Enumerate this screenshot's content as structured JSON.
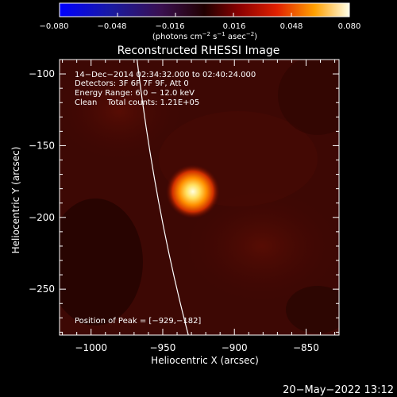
{
  "colorbar": {
    "ticks": [
      "−0.080",
      "−0.048",
      "−0.016",
      "0.016",
      "0.048",
      "0.080"
    ],
    "units_main": "(photons cm",
    "units_exp1": "−2",
    "units_mid": " s",
    "units_exp2": "−1",
    "units_mid2": " asec",
    "units_exp3": "−2",
    "units_end": ")"
  },
  "title": "Reconstructed RHESSI Image",
  "info": {
    "time_range": "14−Dec−2014 02:34:32.000 to 02:40:24.000",
    "detectors": "Detectors: 3F 6F 7F 9F, Att 0",
    "energy": "Energy Range: 6.0 − 12.0 keV",
    "clean": "Clean    Total counts: 1.21E+05",
    "peak": "Position of Peak = [−929,−182]"
  },
  "axes": {
    "xlabel": "Heliocentric X (arcsec)",
    "ylabel": "Heliocentric Y (arcsec)",
    "xticks": [
      "−1000",
      "−950",
      "−900",
      "−850"
    ],
    "yticks": [
      "−100",
      "−150",
      "−200",
      "−250"
    ],
    "xlim": [
      -1022,
      -827
    ],
    "ylim": [
      -282,
      -90
    ]
  },
  "source": {
    "x": -929,
    "y": -182
  },
  "footer_date": "20−May−2022 13:12",
  "colors": {
    "background": "#000000",
    "axes": "#ffffff",
    "limb": "#ffffff"
  }
}
